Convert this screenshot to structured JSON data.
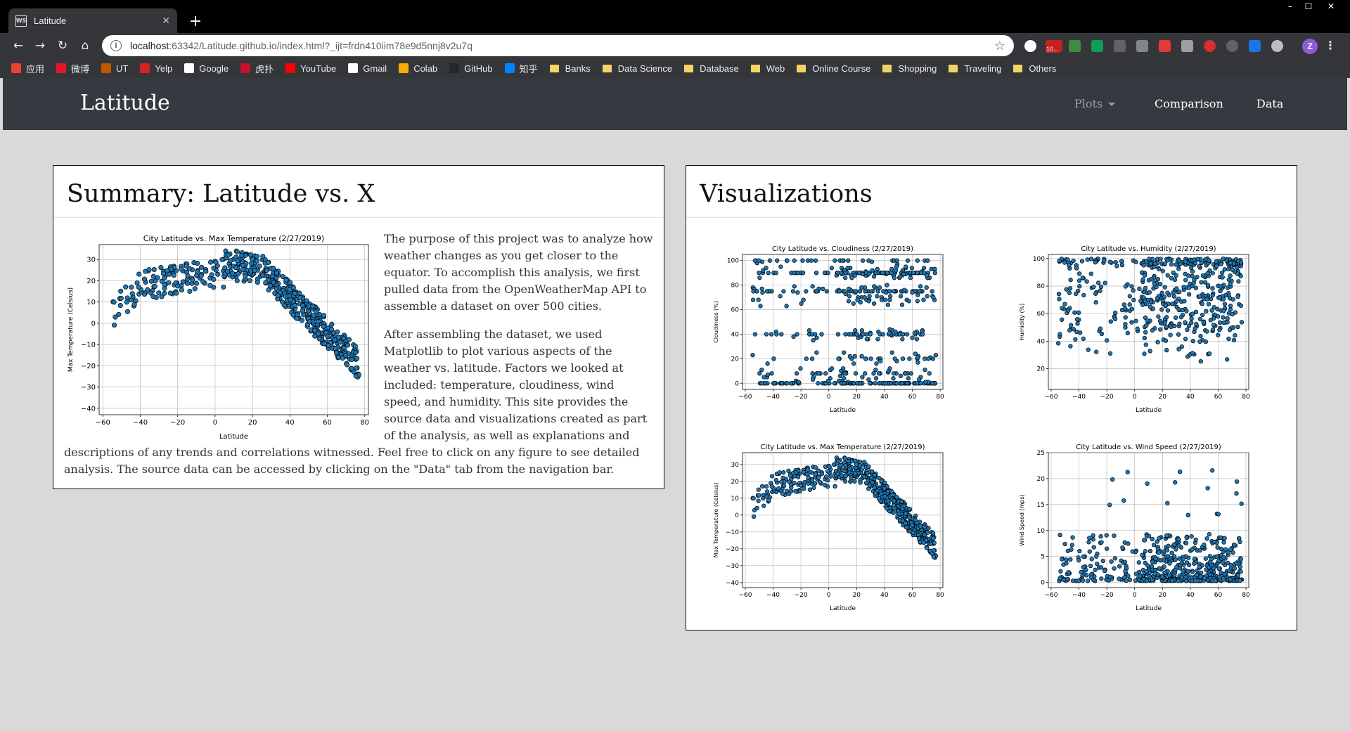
{
  "browser": {
    "tab_title": "Latitude",
    "tab_favicon_text": "WS",
    "url_host": "localhost",
    "url_path": ":63342/Latitude.github.io/index.html?_ijt=frdn410iim78e9d5nnj8v2u7q",
    "avatar_letter": "Z",
    "mail_badge": "10..."
  },
  "bookmarks": [
    {
      "label": "应用",
      "icon": "apps-grid-icon",
      "color": "#ea4335"
    },
    {
      "label": "微博",
      "icon": "weibo-icon",
      "color": "#e6162d"
    },
    {
      "label": "UT",
      "icon": "ut-shield-icon",
      "color": "#bf5700"
    },
    {
      "label": "Yelp",
      "icon": "yelp-icon",
      "color": "#d32323"
    },
    {
      "label": "Google",
      "icon": "google-icon",
      "color": "#ffffff"
    },
    {
      "label": "虎扑",
      "icon": "hupu-icon",
      "color": "#c8102e"
    },
    {
      "label": "YouTube",
      "icon": "youtube-icon",
      "color": "#ff0000"
    },
    {
      "label": "Gmail",
      "icon": "gmail-icon",
      "color": "#ffffff"
    },
    {
      "label": "Colab",
      "icon": "colab-icon",
      "color": "#f9ab00"
    },
    {
      "label": "GitHub",
      "icon": "github-icon",
      "color": "#24292e"
    },
    {
      "label": "知乎",
      "icon": "zhihu-icon",
      "color": "#0084ff"
    },
    {
      "label": "Banks",
      "icon": "folder-icon",
      "folder": true
    },
    {
      "label": "Data Science",
      "icon": "folder-icon",
      "folder": true
    },
    {
      "label": "Database",
      "icon": "folder-icon",
      "folder": true
    },
    {
      "label": "Web",
      "icon": "folder-icon",
      "folder": true
    },
    {
      "label": "Online Course",
      "icon": "folder-icon",
      "folder": true
    },
    {
      "label": "Shopping",
      "icon": "folder-icon",
      "folder": true
    },
    {
      "label": "Traveling",
      "icon": "folder-icon",
      "folder": true
    },
    {
      "label": "Others",
      "icon": "folder-icon",
      "folder": true
    }
  ],
  "site": {
    "brand": "Latitude",
    "nav": {
      "plots": "Plots",
      "comparison": "Comparison",
      "data": "Data"
    }
  },
  "summary": {
    "title": "Summary: Latitude vs. X",
    "paragraphs": [
      "The purpose of this project was to analyze how weather changes as you get closer to the equator. To accomplish this analysis, we first pulled data from the OpenWeatherMap API to assemble a dataset on over 500 cities.",
      "After assembling the dataset, we used Matplotlib to plot various aspects of the weather vs. latitude. Factors we looked at included: temperature, cloudiness, wind speed, and humidity. This site provides the source data and visualizations created as part of the analysis, as well as explanations and descriptions of any trends and correlations witnessed. Feel free to click on any figure to see detailed analysis. The source data can be accessed by clicking on the \"Data\" tab from the navigation bar."
    ]
  },
  "visualizations": {
    "title": "Visualizations"
  },
  "colors": {
    "marker_fill": "#1f77b4",
    "marker_edge": "#000000",
    "navbar": "#343a40",
    "page_bg": "#d9d9d9"
  },
  "chart_data": [
    {
      "id": "summary-temp",
      "type": "scatter",
      "title": "City Latitude vs. Max Temperature (2/27/2019)",
      "xlabel": "Latitude",
      "ylabel": "Max Temperature (Celsius)",
      "xlim": [
        -62,
        82
      ],
      "ylim": [
        -43,
        37
      ],
      "xticks": [
        -60,
        -40,
        -20,
        0,
        20,
        40,
        60,
        80
      ],
      "yticks": [
        -40,
        -30,
        -20,
        -10,
        0,
        10,
        20,
        30
      ],
      "grid": true,
      "trend": "temperature",
      "seed": 11
    },
    {
      "id": "viz-cloud",
      "type": "scatter",
      "title": "City Latitude vs. Cloudiness (2/27/2019)",
      "xlabel": "Latitude",
      "ylabel": "Cloudiness (%)",
      "xlim": [
        -62,
        82
      ],
      "ylim": [
        -5,
        105
      ],
      "xticks": [
        -60,
        -40,
        -20,
        0,
        20,
        40,
        60,
        80
      ],
      "yticks": [
        0,
        20,
        40,
        60,
        80,
        100
      ],
      "grid": true,
      "trend": "cloudiness",
      "seed": 23
    },
    {
      "id": "viz-humidity",
      "type": "scatter",
      "title": "City Latitude vs. Humidity (2/27/2019)",
      "xlabel": "Latitude",
      "ylabel": "Humidity (%)",
      "xlim": [
        -62,
        82
      ],
      "ylim": [
        5,
        103
      ],
      "xticks": [
        -60,
        -40,
        -20,
        0,
        20,
        40,
        60,
        80
      ],
      "yticks": [
        20,
        40,
        60,
        80,
        100
      ],
      "grid": true,
      "trend": "humidity",
      "seed": 37
    },
    {
      "id": "viz-temp",
      "type": "scatter",
      "title": "City Latitude vs. Max Temperature (2/27/2019)",
      "xlabel": "Latitude",
      "ylabel": "Max Temperature (Celsius)",
      "xlim": [
        -62,
        82
      ],
      "ylim": [
        -43,
        37
      ],
      "xticks": [
        -60,
        -40,
        -20,
        0,
        20,
        40,
        60,
        80
      ],
      "yticks": [
        -40,
        -30,
        -20,
        -10,
        0,
        10,
        20,
        30
      ],
      "grid": true,
      "trend": "temperature",
      "seed": 11
    },
    {
      "id": "viz-wind",
      "type": "scatter",
      "title": "City Latitude vs. Wind Speed (2/27/2019)",
      "xlabel": "Latitude",
      "ylabel": "Wind Speed (mps)",
      "xlim": [
        -62,
        82
      ],
      "ylim": [
        -1,
        25
      ],
      "xticks": [
        -60,
        -40,
        -20,
        0,
        20,
        40,
        60,
        80
      ],
      "yticks": [
        0,
        5,
        10,
        15,
        20,
        25
      ],
      "grid": true,
      "trend": "wind",
      "seed": 53
    }
  ]
}
